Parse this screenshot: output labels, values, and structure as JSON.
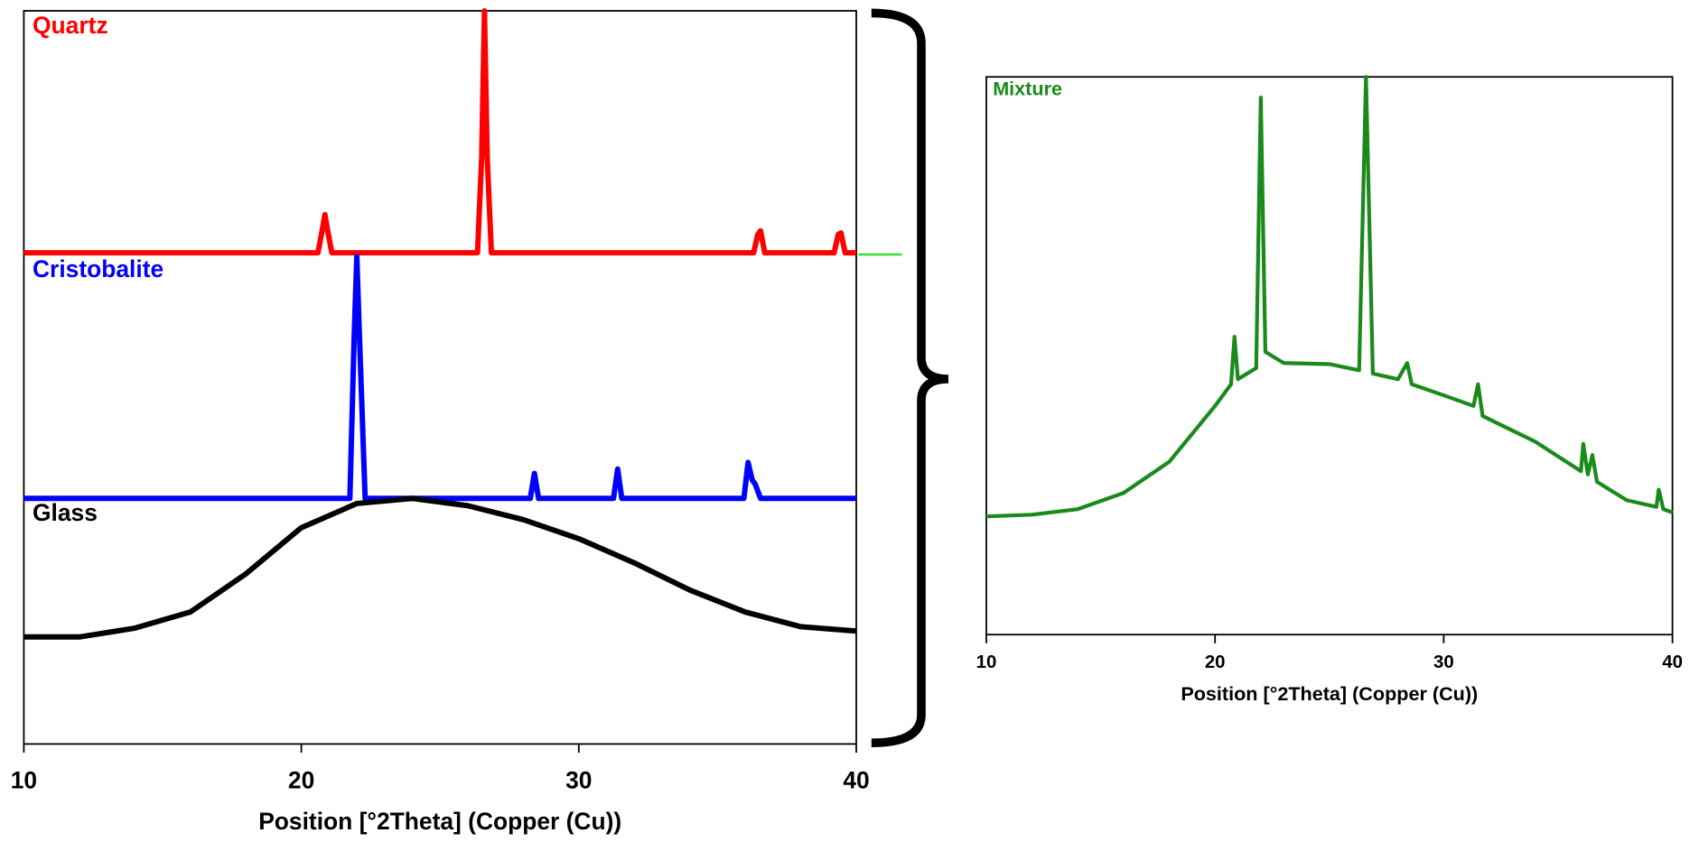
{
  "chart_data": [
    {
      "type": "line",
      "x_label": "Position [°2Theta] (Copper (Cu))",
      "xlim": [
        10,
        40
      ],
      "xticks": [
        10,
        20,
        30,
        40
      ],
      "ylim": [
        0,
        100
      ],
      "series": [
        {
          "name": "Quartz",
          "color": "#ff0000",
          "x": [
            10,
            20.6,
            20.75,
            20.85,
            20.95,
            21.1,
            26.35,
            26.5,
            26.6,
            26.7,
            26.85,
            36.3,
            36.45,
            36.55,
            36.7,
            39.2,
            39.35,
            39.45,
            39.6,
            40
          ],
          "values": [
            67,
            67,
            70,
            72.2,
            70,
            67,
            67,
            80,
            100,
            80,
            67,
            67,
            69.5,
            70,
            67,
            67,
            69.5,
            69.7,
            67,
            67
          ]
        },
        {
          "name": "Cristobalite",
          "color": "#0000ff",
          "x": [
            10,
            21.75,
            21.9,
            22.0,
            22.1,
            22.3,
            28.25,
            28.4,
            28.55,
            31.25,
            31.4,
            31.55,
            35.95,
            36.1,
            36.25,
            36.35,
            36.55,
            40
          ],
          "values": [
            33.5,
            33.5,
            55,
            66.5,
            55,
            33.5,
            33.5,
            36.9,
            33.5,
            33.5,
            37.5,
            33.5,
            33.5,
            38.4,
            36,
            35.5,
            33.5,
            33.5
          ]
        },
        {
          "name": "Glass",
          "color": "#000000",
          "x": [
            10,
            12,
            14,
            16,
            18,
            20,
            22,
            24,
            26,
            28,
            30,
            32,
            34,
            36,
            38,
            40
          ],
          "values": [
            14.6,
            14.6,
            15.8,
            18,
            23.2,
            29.5,
            32.8,
            33.5,
            32.5,
            30.6,
            28,
            24.7,
            21,
            18,
            16,
            15.4
          ]
        }
      ]
    },
    {
      "type": "line",
      "x_label": "Position [°2Theta] (Copper (Cu))",
      "xlim": [
        10,
        40
      ],
      "xticks": [
        10,
        20,
        30,
        40
      ],
      "ylim": [
        0,
        100
      ],
      "series": [
        {
          "name": "Mixture",
          "color": "#1a8a1a",
          "x": [
            10,
            12,
            14,
            16,
            18,
            20,
            20.7,
            20.85,
            21.0,
            21.8,
            22.0,
            22.2,
            23,
            25,
            26.3,
            26.6,
            26.9,
            28,
            28.4,
            28.6,
            30,
            31.3,
            31.5,
            31.7,
            34,
            36,
            36.1,
            36.3,
            36.5,
            36.7,
            38,
            39.3,
            39.4,
            39.6,
            40
          ],
          "values": [
            21.2,
            21.5,
            22.5,
            25.4,
            31,
            41,
            44.9,
            53.4,
            45.8,
            47.8,
            96.3,
            50.7,
            48.7,
            48.5,
            47.4,
            100,
            46.8,
            45.8,
            48.7,
            44.9,
            42.9,
            41,
            44.9,
            39.2,
            34.6,
            29.3,
            34.2,
            28.7,
            32.2,
            27.4,
            24.1,
            22.9,
            26,
            22.5,
            21.9
          ]
        }
      ]
    }
  ]
}
